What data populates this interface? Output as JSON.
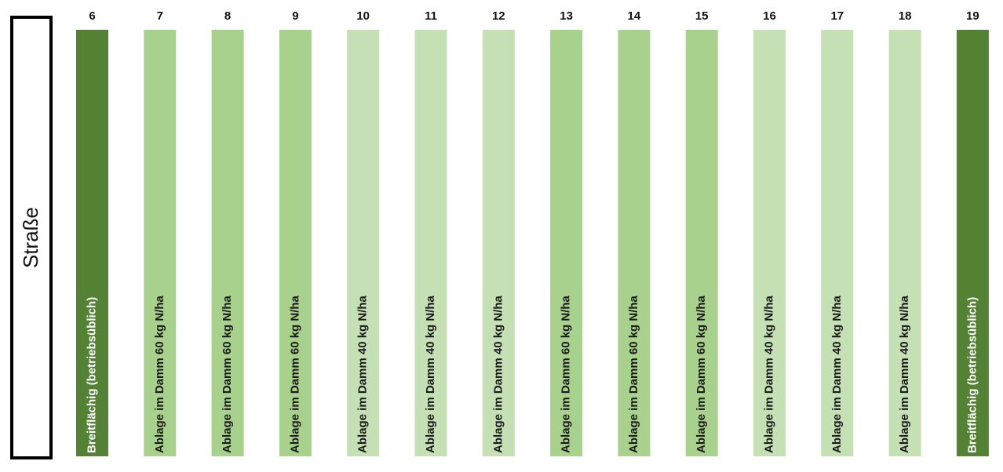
{
  "road": {
    "label": "Straße"
  },
  "plots": [
    {
      "number": 6,
      "label": "Breitflächig (betriebsüblich)",
      "color": "#548235"
    },
    {
      "number": 7,
      "label": "Ablage im Damm 60 kg N/ha",
      "color": "#a9d18e"
    },
    {
      "number": 8,
      "label": "Ablage im Damm 60 kg N/ha",
      "color": "#a9d18e"
    },
    {
      "number": 9,
      "label": "Ablage im Damm 60 kg N/ha",
      "color": "#a9d18e"
    },
    {
      "number": 10,
      "label": "Ablage im Damm 40 kg N/ha",
      "color": "#c5e0b4"
    },
    {
      "number": 11,
      "label": "Ablage im Damm 40 kg N/ha",
      "color": "#c5e0b4"
    },
    {
      "number": 12,
      "label": "Ablage im Damm 40 kg N/ha",
      "color": "#c5e0b4"
    },
    {
      "number": 13,
      "label": "Ablage im Damm 60 kg N/ha",
      "color": "#a9d18e"
    },
    {
      "number": 14,
      "label": "Ablage im Damm 60 kg N/ha",
      "color": "#a9d18e"
    },
    {
      "number": 15,
      "label": "Ablage im Damm 60 kg N/ha",
      "color": "#a9d18e"
    },
    {
      "number": 16,
      "label": "Ablage im Damm 40 kg N/ha",
      "color": "#c5e0b4"
    },
    {
      "number": 17,
      "label": "Ablage im Damm 40 kg N/ha",
      "color": "#c5e0b4"
    },
    {
      "number": 18,
      "label": "Ablage im Damm 40 kg N/ha",
      "color": "#c5e0b4"
    },
    {
      "number": 19,
      "label": "Breitflächig (betriebsüblich)",
      "color": "#548235"
    }
  ]
}
